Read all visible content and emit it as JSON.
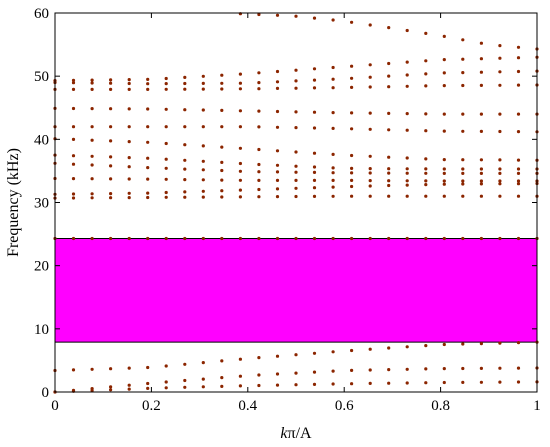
{
  "chart_data": {
    "type": "scatter",
    "title": "",
    "xlabel_k": "k",
    "xlabel_rest": "π/A",
    "ylabel": "Frequency (kHz)",
    "xlim": [
      0,
      1
    ],
    "ylim": [
      0,
      60
    ],
    "x_ticks": [
      "0",
      "0.2",
      "0.4",
      "0.6",
      "0.8",
      "1"
    ],
    "y_ticks": [
      "0",
      "10",
      "20",
      "30",
      "40",
      "50",
      "60"
    ],
    "grid": false,
    "legend": "none",
    "band_gap": {
      "from": 7.9,
      "to": 24.3,
      "color": "#ff00ff"
    },
    "marker_color": "#8b2500",
    "series": [
      {
        "x": [
          0,
          0.2,
          0.4,
          0.6,
          0.8,
          1
        ],
        "y": [
          0.0,
          0.6,
          1.0,
          1.3,
          1.5,
          1.6
        ]
      },
      {
        "x": [
          0,
          0.2,
          0.4,
          0.6,
          0.8,
          1
        ],
        "y": [
          0.0,
          1.4,
          2.6,
          3.4,
          3.7,
          3.8
        ]
      },
      {
        "x": [
          0,
          0.2,
          0.4,
          0.6,
          0.8,
          1
        ],
        "y": [
          3.4,
          3.9,
          5.3,
          6.5,
          7.5,
          7.9
        ]
      },
      {
        "x": [
          0,
          0.2,
          0.4,
          0.6,
          0.8,
          1
        ],
        "y": [
          24.3,
          24.3,
          24.3,
          24.3,
          24.3,
          24.3
        ]
      },
      {
        "x": [
          0,
          0.2,
          0.4,
          0.6,
          0.8,
          1
        ],
        "y": [
          30.7,
          30.8,
          30.9,
          31.0,
          31.0,
          31.0
        ]
      },
      {
        "x": [
          0,
          0.2,
          0.4,
          0.6,
          0.8,
          1
        ],
        "y": [
          31.3,
          31.5,
          32.0,
          32.5,
          32.9,
          33.0
        ]
      },
      {
        "x": [
          0,
          0.2,
          0.4,
          0.6,
          0.8,
          1
        ],
        "y": [
          33.8,
          33.7,
          33.5,
          33.5,
          33.4,
          33.4
        ]
      },
      {
        "x": [
          0,
          0.2,
          0.4,
          0.6,
          0.8,
          1
        ],
        "y": [
          36.2,
          35.5,
          34.9,
          34.7,
          34.6,
          34.6
        ]
      },
      {
        "x": [
          0,
          0.2,
          0.4,
          0.6,
          0.8,
          1
        ],
        "y": [
          37.5,
          37.0,
          36.1,
          35.4,
          35.3,
          35.3
        ]
      },
      {
        "x": [
          0,
          0.2,
          0.4,
          0.6,
          0.8,
          1
        ],
        "y": [
          40.1,
          39.5,
          38.5,
          37.5,
          36.8,
          36.7
        ]
      },
      {
        "x": [
          0,
          0.2,
          0.4,
          0.6,
          0.8,
          1
        ],
        "y": [
          42.0,
          42.0,
          42.0,
          41.7,
          41.3,
          41.2
        ]
      },
      {
        "x": [
          0,
          0.2,
          0.4,
          0.6,
          0.8,
          1
        ],
        "y": [
          44.9,
          44.8,
          44.5,
          44.2,
          44.0,
          44.0
        ]
      },
      {
        "x": [
          0,
          0.2,
          0.4,
          0.6,
          0.8,
          1
        ],
        "y": [
          47.9,
          47.9,
          48.0,
          48.2,
          48.5,
          48.6
        ]
      },
      {
        "x": [
          0,
          0.2,
          0.4,
          0.6,
          0.8,
          1
        ],
        "y": [
          49.0,
          48.8,
          48.9,
          49.6,
          50.5,
          50.8
        ]
      },
      {
        "x": [
          0,
          0.2,
          0.4,
          0.6,
          0.8,
          1
        ],
        "y": [
          49.3,
          49.5,
          50.4,
          51.5,
          52.6,
          53.0
        ]
      },
      {
        "x": [
          0.38,
          0.5,
          0.6,
          0.7,
          0.8,
          0.9,
          1
        ],
        "y": [
          59.9,
          59.5,
          58.7,
          57.6,
          56.4,
          55.0,
          54.3
        ]
      }
    ]
  }
}
